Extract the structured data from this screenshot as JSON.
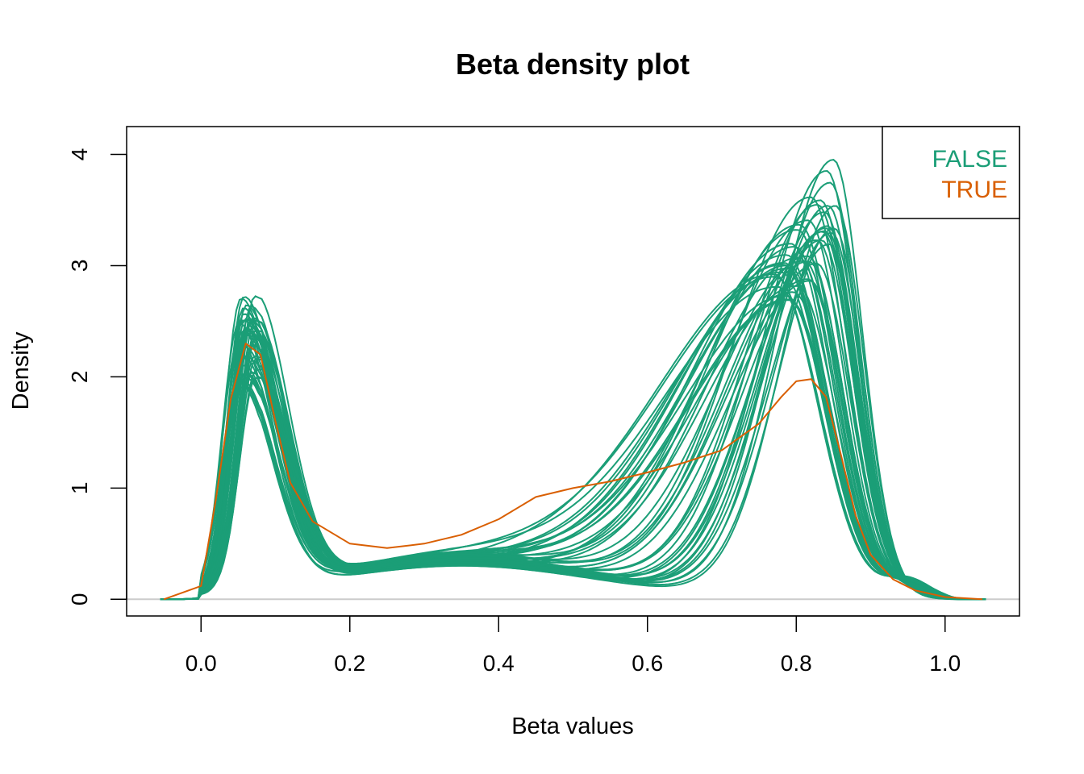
{
  "chart_data": {
    "type": "line",
    "title": "Beta density plot",
    "xlabel": "Beta values",
    "ylabel": "Density",
    "xlim": [
      -0.1,
      1.1
    ],
    "ylim": [
      -0.15,
      4.25
    ],
    "x_ticks": [
      0.0,
      0.2,
      0.4,
      0.6,
      0.8,
      1.0
    ],
    "x_tick_labels": [
      "0.0",
      "0.2",
      "0.4",
      "0.6",
      "0.8",
      "1.0"
    ],
    "y_ticks": [
      0,
      1,
      2,
      3,
      4
    ],
    "y_tick_labels": [
      "0",
      "1",
      "2",
      "3",
      "4"
    ],
    "grid": false,
    "reference_line_y": 0,
    "legend": {
      "position": "top-right",
      "entries": [
        {
          "label": "FALSE",
          "color": "#1b9e77"
        },
        {
          "label": "TRUE",
          "color": "#d95f02"
        }
      ]
    },
    "colors": {
      "FALSE": "#1b9e77",
      "TRUE": "#d95f02",
      "reference": "#cccccc"
    },
    "false_group": {
      "count": 44,
      "low_peak_x_range": [
        0.05,
        0.075
      ],
      "low_peak_height_range": [
        1.86,
        2.64
      ],
      "high_peak_x_range": [
        0.77,
        0.855
      ],
      "high_peak_height_range": [
        2.2,
        4.07
      ],
      "x_range": [
        -0.055,
        1.055
      ]
    },
    "true_series": {
      "x": [
        -0.05,
        0.0,
        0.02,
        0.04,
        0.06,
        0.08,
        0.1,
        0.12,
        0.15,
        0.2,
        0.25,
        0.3,
        0.35,
        0.4,
        0.45,
        0.5,
        0.55,
        0.6,
        0.65,
        0.7,
        0.75,
        0.78,
        0.8,
        0.82,
        0.84,
        0.86,
        0.88,
        0.9,
        0.93,
        0.96,
        1.0,
        1.05
      ],
      "y": [
        0.0,
        0.12,
        0.9,
        1.8,
        2.3,
        2.2,
        1.6,
        1.05,
        0.7,
        0.5,
        0.46,
        0.5,
        0.58,
        0.72,
        0.92,
        1.0,
        1.06,
        1.14,
        1.23,
        1.34,
        1.58,
        1.82,
        1.96,
        1.98,
        1.82,
        1.3,
        0.75,
        0.4,
        0.18,
        0.08,
        0.02,
        0.0
      ]
    }
  }
}
